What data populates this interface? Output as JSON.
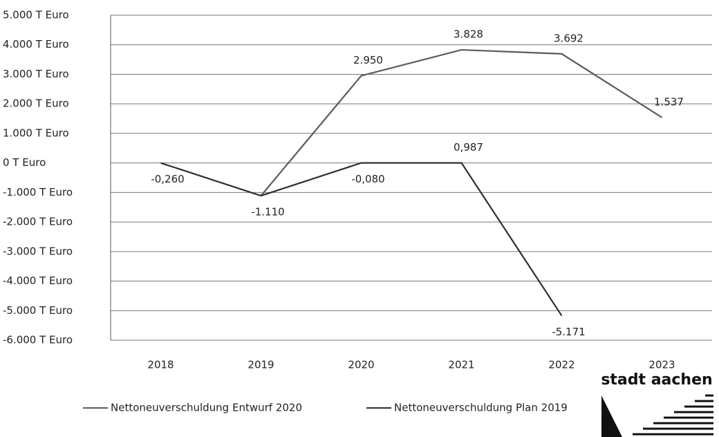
{
  "chart_data": {
    "type": "line",
    "categories": [
      "2018",
      "2019",
      "2020",
      "2021",
      "2022",
      "2023"
    ],
    "series": [
      {
        "name": "Nettoneuverschuldung Entwurf 2020",
        "color": "#5a5a5a",
        "values": [
          null,
          -1110,
          2950,
          3828,
          3692,
          1537
        ],
        "value_labels": [
          null,
          null,
          "2.950",
          "3.828",
          "3.692",
          "1.537"
        ]
      },
      {
        "name": "Nettoneuverschuldung Plan 2019",
        "color": "#2e2e2e",
        "values": [
          -0.26,
          -1110,
          -0.08,
          0.987,
          -5171,
          null
        ],
        "value_labels": [
          "-0,260",
          "-1.110",
          "-0,080",
          "0,987",
          "-5.171",
          null
        ]
      }
    ],
    "ylim": [
      -6000,
      5000
    ],
    "yticks": [
      {
        "value": 5000,
        "label": "5.000 T Euro"
      },
      {
        "value": 4000,
        "label": "4.000 T Euro"
      },
      {
        "value": 3000,
        "label": "3.000 T Euro"
      },
      {
        "value": 2000,
        "label": "2.000 T Euro"
      },
      {
        "value": 1000,
        "label": "1.000 T Euro"
      },
      {
        "value": 0,
        "label": "0 T Euro"
      },
      {
        "value": -1000,
        "label": "-1.000 T Euro"
      },
      {
        "value": -2000,
        "label": "-2.000 T Euro"
      },
      {
        "value": -3000,
        "label": "-3.000 T Euro"
      },
      {
        "value": -4000,
        "label": "-4.000 T Euro"
      },
      {
        "value": -5000,
        "label": "-5.000 T Euro"
      },
      {
        "value": -6000,
        "label": "-6.000 T Euro"
      }
    ],
    "grid": true,
    "legend": "bottom"
  },
  "logo": "stadt aachen"
}
